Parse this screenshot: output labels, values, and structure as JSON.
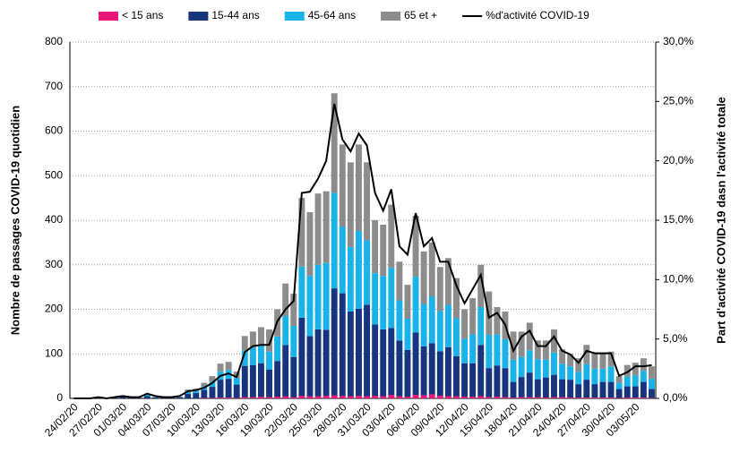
{
  "chart_data": {
    "type": "bar",
    "y_label": "Nombre de passages COVID-19 quotidien",
    "y2_label": "Part d'activité COVID-19 dasn l'activité totale",
    "categories": [
      "24/02/20",
      null,
      null,
      "27/02/20",
      null,
      null,
      "01/03/20",
      null,
      null,
      "04/03/20",
      null,
      null,
      "07/03/20",
      null,
      null,
      "10/03/20",
      null,
      null,
      "13/03/20",
      null,
      null,
      "16/03/20",
      null,
      null,
      "19/03/20",
      null,
      null,
      "22/03/20",
      null,
      null,
      "25/03/20",
      null,
      null,
      "28/03/20",
      null,
      null,
      "31/03/20",
      null,
      null,
      "03/04/20",
      null,
      null,
      "06/04/20",
      null,
      null,
      "09/04/20",
      null,
      null,
      "12/04/20",
      null,
      null,
      "15/04/20",
      null,
      null,
      "18/04/20",
      null,
      null,
      "21/04/20",
      null,
      null,
      "24/04/20",
      null,
      null,
      "27/04/20",
      null,
      null,
      "30/04/20",
      null,
      null,
      "03/05/20",
      null,
      null
    ],
    "stacked": true,
    "series": [
      {
        "name": "< 15 ans",
        "color": "#e6197a",
        "values": [
          0,
          0,
          0,
          0,
          0,
          0,
          0,
          0,
          0,
          0,
          0,
          0,
          0,
          0,
          0,
          0,
          1,
          1,
          2,
          2,
          1,
          3,
          3,
          4,
          3,
          4,
          5,
          3,
          6,
          5,
          5,
          6,
          7,
          6,
          5,
          6,
          5,
          6,
          5,
          8,
          5,
          4,
          8,
          7,
          9,
          6,
          5,
          5,
          4,
          4,
          5,
          3,
          4,
          3,
          2,
          3,
          3,
          3,
          2,
          3,
          3,
          2,
          2,
          2,
          2,
          2,
          2,
          1,
          2,
          2,
          2,
          1
        ]
      },
      {
        "name": "15-44 ans",
        "color": "#17347f",
        "values": [
          0,
          0,
          0,
          1,
          0,
          1,
          3,
          2,
          1,
          5,
          2,
          2,
          2,
          2,
          10,
          12,
          18,
          25,
          40,
          42,
          30,
          70,
          72,
          75,
          62,
          80,
          115,
          90,
          175,
          135,
          150,
          148,
          240,
          230,
          190,
          195,
          205,
          160,
          150,
          150,
          125,
          105,
          140,
          110,
          115,
          100,
          110,
          90,
          75,
          75,
          115,
          65,
          70,
          65,
          35,
          45,
          55,
          40,
          45,
          50,
          40,
          40,
          30,
          40,
          30,
          35,
          35,
          20,
          25,
          25,
          35,
          20
        ]
      },
      {
        "name": "45-64 ans",
        "color": "#19b3ea",
        "values": [
          0,
          0,
          0,
          0,
          0,
          1,
          1,
          1,
          1,
          3,
          1,
          1,
          1,
          1,
          5,
          5,
          8,
          12,
          18,
          20,
          15,
          35,
          40,
          42,
          40,
          55,
          65,
          70,
          115,
          135,
          145,
          150,
          215,
          150,
          145,
          175,
          145,
          115,
          120,
          135,
          90,
          70,
          125,
          95,
          105,
          90,
          95,
          85,
          55,
          65,
          85,
          75,
          70,
          65,
          50,
          45,
          50,
          45,
          40,
          50,
          35,
          30,
          28,
          35,
          35,
          30,
          35,
          14,
          22,
          25,
          25,
          23
        ]
      },
      {
        "name": "65 et +",
        "color": "#8c8c8c",
        "values": [
          0,
          0,
          0,
          0,
          0,
          0,
          1,
          0,
          0,
          2,
          0,
          0,
          0,
          1,
          5,
          5,
          8,
          12,
          18,
          18,
          14,
          32,
          35,
          39,
          50,
          61,
          73,
          72,
          154,
          143,
          160,
          161,
          223,
          184,
          190,
          194,
          175,
          119,
          115,
          142,
          87,
          76,
          137,
          118,
          121,
          99,
          105,
          90,
          66,
          81,
          95,
          97,
          61,
          62,
          63,
          57,
          62,
          42,
          43,
          52,
          32,
          28,
          30,
          43,
          33,
          33,
          33,
          15,
          26,
          28,
          28,
          28
        ]
      },
      {
        "name": "%d'activité COVID-19",
        "color": "#000000",
        "type": "line",
        "axis": "y2",
        "values": [
          0,
          0,
          0,
          0.1,
          0,
          0.1,
          0.2,
          0.1,
          0.1,
          0.4,
          0.2,
          0.1,
          0.1,
          0.2,
          0.6,
          0.7,
          0.9,
          1.3,
          1.9,
          2.1,
          1.8,
          3.9,
          4.4,
          4.5,
          4.5,
          6.5,
          7.5,
          8.2,
          17.3,
          17.4,
          18.5,
          20,
          24.8,
          21.8,
          20.8,
          22.3,
          21.3,
          17.3,
          15.8,
          17.6,
          12.8,
          12.1,
          15.6,
          12.8,
          13.5,
          11.5,
          11.5,
          9.5,
          8,
          9.2,
          10.4,
          6.8,
          7.2,
          6.2,
          4,
          5.2,
          5.7,
          4.4,
          4.4,
          5.2,
          4,
          3.7,
          3,
          4,
          3.8,
          3.8,
          3.8,
          1.9,
          2.2,
          2.7,
          2.7,
          2.8
        ]
      }
    ],
    "ylim": [
      0,
      800
    ],
    "yticks": [
      0,
      100,
      200,
      300,
      400,
      500,
      600,
      700,
      800
    ],
    "y2lim": [
      0,
      30
    ],
    "y2ticks": [
      {
        "value": 0,
        "label": "0,0%"
      },
      {
        "value": 5,
        "label": "5,0%"
      },
      {
        "value": 10,
        "label": "10,0%"
      },
      {
        "value": 15,
        "label": "15,0%"
      },
      {
        "value": 20,
        "label": "20,0%"
      },
      {
        "value": 25,
        "label": "25,0%"
      },
      {
        "value": 30,
        "label": "30,0%"
      }
    ],
    "grid": true,
    "legend": "top"
  }
}
